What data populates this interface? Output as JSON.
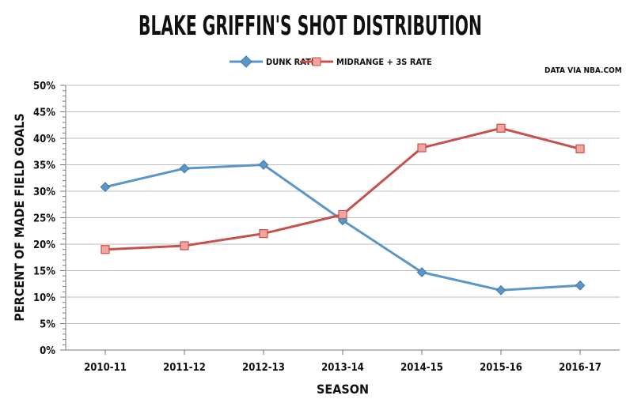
{
  "chart_data": {
    "type": "line",
    "title": "BLAKE GRIFFIN'S SHOT DISTRIBUTION",
    "source_note": "DATA VIA NBA.COM",
    "xlabel": "SEASON",
    "ylabel": "PERCENT OF MADE FIELD GOALS",
    "categories": [
      "2010-11",
      "2011-12",
      "2012-13",
      "2013-14",
      "2014-15",
      "2015-16",
      "2016-17"
    ],
    "ylim": [
      0,
      50
    ],
    "yticks": [
      "0%",
      "5%",
      "10%",
      "15%",
      "20%",
      "25%",
      "30%",
      "35%",
      "40%",
      "45%",
      "50%"
    ],
    "grid": true,
    "legend_position": "top",
    "series": [
      {
        "name": "DUNK RATE",
        "color": "#5a96c8",
        "marker": "diamond",
        "values": [
          30.8,
          34.3,
          35.0,
          24.5,
          14.7,
          11.3,
          12.2
        ]
      },
      {
        "name": "MIDRANGE + 3S RATE",
        "color": "#c8504b",
        "marker": "square",
        "values": [
          19.0,
          19.7,
          22.0,
          25.6,
          38.2,
          41.9,
          38.0
        ]
      }
    ]
  }
}
